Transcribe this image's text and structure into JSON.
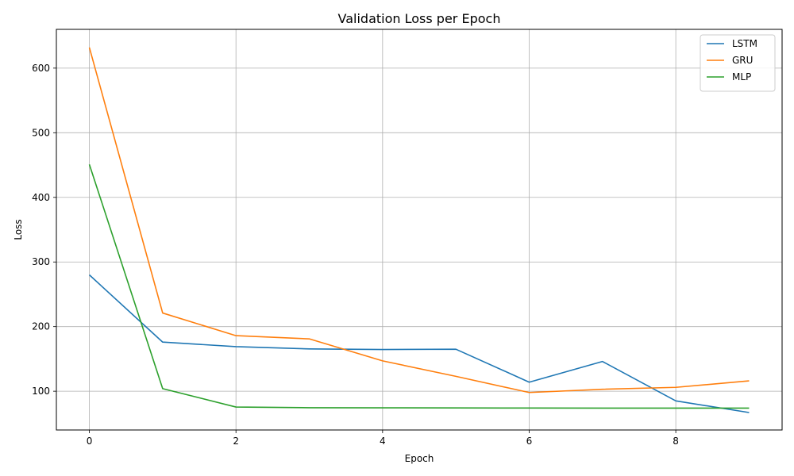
{
  "chart_data": {
    "type": "line",
    "title": "Validation Loss per Epoch",
    "xlabel": "Epoch",
    "ylabel": "Loss",
    "x": [
      0,
      1,
      2,
      3,
      4,
      5,
      6,
      7,
      8,
      9
    ],
    "xlim": [
      -0.45,
      9.45
    ],
    "ylim": [
      40,
      660
    ],
    "xticks": [
      0,
      2,
      4,
      6,
      8
    ],
    "yticks": [
      100,
      200,
      300,
      400,
      500,
      600
    ],
    "grid": true,
    "legend_position": "top-right",
    "series": [
      {
        "name": "LSTM",
        "color": "#1f77b4",
        "values": [
          280,
          176,
          169,
          165.5,
          164.5,
          165,
          114,
          146,
          85,
          67
        ]
      },
      {
        "name": "GRU",
        "color": "#ff7f0e",
        "values": [
          632,
          221,
          186,
          181,
          147,
          123,
          98,
          103,
          106,
          116
        ]
      },
      {
        "name": "MLP",
        "color": "#2ca02c",
        "values": [
          451,
          104,
          75.5,
          74.5,
          74.3,
          74.1,
          74,
          73.9,
          73.8,
          73.8
        ]
      }
    ]
  }
}
